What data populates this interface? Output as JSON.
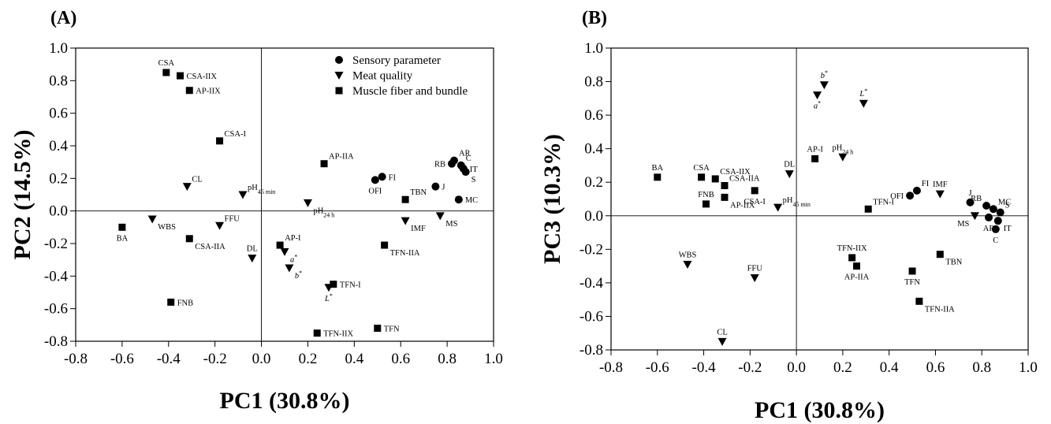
{
  "chart_data": [
    {
      "type": "scatter",
      "panel_label": "(A)",
      "xlabel": "PC1 (30.8%)",
      "ylabel": "PC2 (14.5%)",
      "xlim": [
        -0.8,
        1.0
      ],
      "ylim": [
        -0.8,
        1.0
      ],
      "xticks": [
        "-0.8",
        "-0.6",
        "-0.4",
        "-0.2",
        "0.0",
        "0.2",
        "0.4",
        "0.6",
        "0.8",
        "1.0"
      ],
      "yticks": [
        "-0.8",
        "-0.6",
        "-0.4",
        "-0.2",
        "0.0",
        "0.2",
        "0.4",
        "0.6",
        "0.8",
        "1.0"
      ],
      "legend_position": "top-right",
      "legend": [
        {
          "label": "Sensory parameter",
          "marker": "circle"
        },
        {
          "label": "Meat quality",
          "marker": "triangle-down"
        },
        {
          "label": "Muscle fiber and bundle",
          "marker": "square"
        }
      ],
      "points": [
        {
          "label": "CSA",
          "x": -0.41,
          "y": 0.85,
          "marker": "square",
          "pos": "n"
        },
        {
          "label": "CSA-IIX",
          "x": -0.35,
          "y": 0.83,
          "marker": "square",
          "pos": "e"
        },
        {
          "label": "AP-IIX",
          "x": -0.31,
          "y": 0.74,
          "marker": "square",
          "pos": "e"
        },
        {
          "label": "CSA-I",
          "x": -0.18,
          "y": 0.43,
          "marker": "square",
          "pos": "ne"
        },
        {
          "label": "CL",
          "x": -0.32,
          "y": 0.15,
          "marker": "triangle",
          "pos": "ne"
        },
        {
          "label": "pH45 min",
          "x": -0.08,
          "y": 0.1,
          "marker": "triangle",
          "pos": "ne",
          "sub": true
        },
        {
          "label": "BA",
          "x": -0.6,
          "y": -0.1,
          "marker": "square",
          "pos": "s"
        },
        {
          "label": "WBS",
          "x": -0.47,
          "y": -0.05,
          "marker": "triangle",
          "pos": "se"
        },
        {
          "label": "FFU",
          "x": -0.18,
          "y": -0.09,
          "marker": "triangle",
          "pos": "ne"
        },
        {
          "label": "CSA-IIA",
          "x": -0.31,
          "y": -0.17,
          "marker": "square",
          "pos": "se"
        },
        {
          "label": "DL",
          "x": -0.04,
          "y": -0.29,
          "marker": "triangle",
          "pos": "n"
        },
        {
          "label": "FNB",
          "x": -0.39,
          "y": -0.56,
          "marker": "square",
          "pos": "e"
        },
        {
          "label": "AP-IIA",
          "x": 0.27,
          "y": 0.29,
          "marker": "square",
          "pos": "ne"
        },
        {
          "label": "pH24 h",
          "x": 0.2,
          "y": 0.05,
          "marker": "triangle",
          "pos": "se",
          "sub": true
        },
        {
          "label": "AP-I",
          "x": 0.08,
          "y": -0.21,
          "marker": "square",
          "pos": "ne"
        },
        {
          "label": "a*",
          "x": 0.1,
          "y": -0.25,
          "marker": "triangle",
          "pos": "se",
          "italic": true
        },
        {
          "label": "b*",
          "x": 0.12,
          "y": -0.35,
          "marker": "triangle",
          "pos": "se",
          "italic": true
        },
        {
          "label": "TFN-I",
          "x": 0.31,
          "y": -0.45,
          "marker": "square",
          "pos": "e"
        },
        {
          "label": "L*",
          "x": 0.29,
          "y": -0.47,
          "marker": "triangle",
          "pos": "s",
          "italic": true
        },
        {
          "label": "TFN-IIX",
          "x": 0.24,
          "y": -0.75,
          "marker": "square",
          "pos": "e"
        },
        {
          "label": "TFN",
          "x": 0.5,
          "y": -0.72,
          "marker": "square",
          "pos": "e"
        },
        {
          "label": "TFN-IIA",
          "x": 0.53,
          "y": -0.21,
          "marker": "square",
          "pos": "se"
        },
        {
          "label": "TBN",
          "x": 0.62,
          "y": 0.07,
          "marker": "square",
          "pos": "ne"
        },
        {
          "label": "IMF",
          "x": 0.62,
          "y": -0.06,
          "marker": "triangle",
          "pos": "se"
        },
        {
          "label": "MS",
          "x": 0.77,
          "y": -0.03,
          "marker": "triangle",
          "pos": "se"
        },
        {
          "label": "OFI",
          "x": 0.49,
          "y": 0.19,
          "marker": "circle",
          "pos": "s"
        },
        {
          "label": "FI",
          "x": 0.52,
          "y": 0.21,
          "marker": "circle",
          "pos": "e"
        },
        {
          "label": "J",
          "x": 0.75,
          "y": 0.15,
          "marker": "circle",
          "pos": "e"
        },
        {
          "label": "MC",
          "x": 0.85,
          "y": 0.07,
          "marker": "circle",
          "pos": "e"
        },
        {
          "label": "AR",
          "x": 0.83,
          "y": 0.31,
          "marker": "circle",
          "pos": "ne"
        },
        {
          "label": "RB",
          "x": 0.82,
          "y": 0.29,
          "marker": "circle",
          "pos": "w"
        },
        {
          "label": "C",
          "x": 0.86,
          "y": 0.28,
          "marker": "circle",
          "pos": "ne"
        },
        {
          "label": "IT",
          "x": 0.87,
          "y": 0.26,
          "marker": "circle",
          "pos": "e"
        },
        {
          "label": "S",
          "x": 0.88,
          "y": 0.24,
          "marker": "circle",
          "pos": "se"
        }
      ]
    },
    {
      "type": "scatter",
      "panel_label": "(B)",
      "xlabel": "PC1 (30.8%)",
      "ylabel": "PC3 (10.3%)",
      "xlim": [
        -0.8,
        1.0
      ],
      "ylim": [
        -0.8,
        1.0
      ],
      "xticks": [
        "-0.8",
        "-0.6",
        "-0.4",
        "-0.2",
        "0.0",
        "0.2",
        "0.4",
        "0.6",
        "0.8",
        "1.0"
      ],
      "yticks": [
        "-0.8",
        "-0.6",
        "-0.4",
        "-0.2",
        "0.0",
        "0.2",
        "0.4",
        "0.6",
        "0.8",
        "1.0"
      ],
      "points": [
        {
          "label": "b*",
          "x": 0.12,
          "y": 0.78,
          "marker": "triangle",
          "pos": "n",
          "italic": true
        },
        {
          "label": "a*",
          "x": 0.09,
          "y": 0.72,
          "marker": "triangle",
          "pos": "s",
          "italic": true
        },
        {
          "label": "L*",
          "x": 0.29,
          "y": 0.67,
          "marker": "triangle",
          "pos": "n",
          "italic": true
        },
        {
          "label": "AP-I",
          "x": 0.08,
          "y": 0.34,
          "marker": "square",
          "pos": "n"
        },
        {
          "label": "pH24 h",
          "x": 0.2,
          "y": 0.35,
          "marker": "triangle",
          "pos": "n",
          "sub": true
        },
        {
          "label": "DL",
          "x": -0.03,
          "y": 0.25,
          "marker": "triangle",
          "pos": "n"
        },
        {
          "label": "BA",
          "x": -0.6,
          "y": 0.23,
          "marker": "square",
          "pos": "n"
        },
        {
          "label": "CSA",
          "x": -0.41,
          "y": 0.23,
          "marker": "square",
          "pos": "n"
        },
        {
          "label": "CSA-IIX",
          "x": -0.35,
          "y": 0.22,
          "marker": "square",
          "pos": "ne"
        },
        {
          "label": "CSA-IIA",
          "x": -0.31,
          "y": 0.18,
          "marker": "square",
          "pos": "ne"
        },
        {
          "label": "CSA-I",
          "x": -0.18,
          "y": 0.15,
          "marker": "square",
          "pos": "s"
        },
        {
          "label": "AP-IIX",
          "x": -0.31,
          "y": 0.11,
          "marker": "square",
          "pos": "se"
        },
        {
          "label": "FNB",
          "x": -0.39,
          "y": 0.07,
          "marker": "square",
          "pos": "n"
        },
        {
          "label": "pH45 min",
          "x": -0.08,
          "y": 0.05,
          "marker": "triangle",
          "pos": "ne",
          "sub": true
        },
        {
          "label": "TFN-I",
          "x": 0.31,
          "y": 0.04,
          "marker": "square",
          "pos": "ne"
        },
        {
          "label": "IMF",
          "x": 0.62,
          "y": 0.13,
          "marker": "triangle",
          "pos": "n"
        },
        {
          "label": "OFI",
          "x": 0.49,
          "y": 0.12,
          "marker": "circle",
          "pos": "w"
        },
        {
          "label": "FI",
          "x": 0.52,
          "y": 0.15,
          "marker": "circle",
          "pos": "ne"
        },
        {
          "label": "J",
          "x": 0.75,
          "y": 0.08,
          "marker": "circle",
          "pos": "n"
        },
        {
          "label": "RB",
          "x": 0.82,
          "y": 0.06,
          "marker": "circle",
          "pos": "nw"
        },
        {
          "label": "MC",
          "x": 0.85,
          "y": 0.04,
          "marker": "circle",
          "pos": "ne"
        },
        {
          "label": "S",
          "x": 0.88,
          "y": 0.02,
          "marker": "circle",
          "pos": "ne"
        },
        {
          "label": "MS",
          "x": 0.77,
          "y": 0.0,
          "marker": "triangle",
          "pos": "sw"
        },
        {
          "label": "AR",
          "x": 0.83,
          "y": -0.01,
          "marker": "circle",
          "pos": "s"
        },
        {
          "label": "IT",
          "x": 0.87,
          "y": -0.03,
          "marker": "circle",
          "pos": "se"
        },
        {
          "label": "C",
          "x": 0.86,
          "y": -0.08,
          "marker": "circle",
          "pos": "s"
        },
        {
          "label": "TFN-IIX",
          "x": 0.24,
          "y": -0.25,
          "marker": "square",
          "pos": "n"
        },
        {
          "label": "AP-IIA",
          "x": 0.26,
          "y": -0.3,
          "marker": "square",
          "pos": "s"
        },
        {
          "label": "TBN",
          "x": 0.62,
          "y": -0.23,
          "marker": "square",
          "pos": "se"
        },
        {
          "label": "TFN",
          "x": 0.5,
          "y": -0.33,
          "marker": "square",
          "pos": "s"
        },
        {
          "label": "TFN-IIA",
          "x": 0.53,
          "y": -0.51,
          "marker": "square",
          "pos": "se"
        },
        {
          "label": "WBS",
          "x": -0.47,
          "y": -0.29,
          "marker": "triangle",
          "pos": "n"
        },
        {
          "label": "FFU",
          "x": -0.18,
          "y": -0.37,
          "marker": "triangle",
          "pos": "n"
        },
        {
          "label": "CL",
          "x": -0.32,
          "y": -0.75,
          "marker": "triangle",
          "pos": "n"
        }
      ]
    }
  ]
}
